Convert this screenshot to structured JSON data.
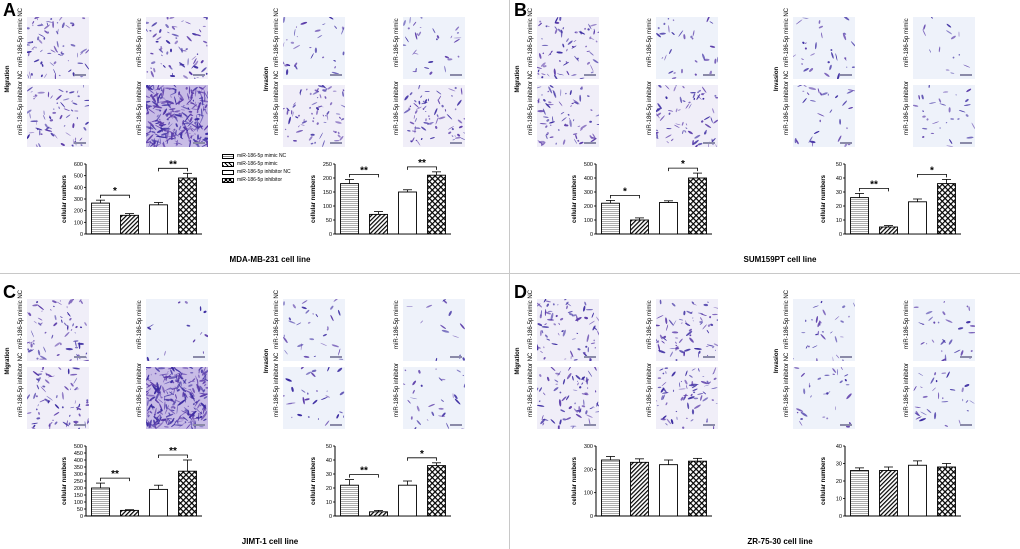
{
  "legend": [
    "miR-186-5p mimic NC",
    "miR-186-5p mimic",
    "miR-186-5p inhibitor NC",
    "miR-186-5p inhibitor"
  ],
  "row_labels": {
    "mimic_nc": "miR-186-5p mimic NC",
    "mimic": "miR-186-5p mimic",
    "inhibitor_nc": "miR-186-5p inhibitor NC",
    "inhibitor": "miR-186-5p inhibitor"
  },
  "ylabel": "cellular numbers",
  "colors": {
    "stain": "#5a3aa8",
    "light_bg": "#e8ecf8",
    "dense": "#3a2aa0"
  },
  "panels": [
    {
      "letter": "A",
      "caption": "MDA-MB-231 cell line",
      "migration_label": "Migration",
      "invasion_label": "Invasion",
      "photos": {
        "migration": [
          "medium",
          "medium",
          "medium",
          "dense"
        ],
        "invasion": [
          "light",
          "light",
          "medium",
          "medium"
        ]
      }
    },
    {
      "letter": "B",
      "caption": "SUM159PT cell line",
      "migration_label": "Migration",
      "invasion_label": "Invasion",
      "photos": {
        "migration": [
          "medium",
          "light",
          "medium",
          "medium"
        ],
        "invasion": [
          "light",
          "sparse",
          "light",
          "light"
        ]
      }
    },
    {
      "letter": "C",
      "caption": "JIMT-1 cell line",
      "migration_label": "Migration",
      "invasion_label": "Invasion",
      "photos": {
        "migration": [
          "medium",
          "sparse",
          "medium",
          "dense"
        ],
        "invasion": [
          "light",
          "sparse",
          "light",
          "light"
        ]
      }
    },
    {
      "letter": "D",
      "caption": "ZR-75-30 cell line",
      "migration_label": "Migration",
      "invasion_label": "Invasion",
      "photos": {
        "migration": [
          "medium",
          "medium",
          "medium",
          "medium"
        ],
        "invasion": [
          "light",
          "light",
          "light",
          "light"
        ]
      }
    }
  ],
  "chart_data": [
    {
      "id": "A-migration",
      "type": "bar",
      "ylabel": "cellular numbers",
      "ylim": [
        0,
        600
      ],
      "ticks": [
        0,
        100,
        200,
        300,
        400,
        500,
        600
      ],
      "categories": [
        "miR-186-5p mimic NC",
        "miR-186-5p mimic",
        "miR-186-5p inhibitor NC",
        "miR-186-5p inhibitor"
      ],
      "values": [
        265,
        160,
        250,
        480
      ],
      "errors": [
        25,
        15,
        20,
        40
      ],
      "significance": [
        {
          "pair": [
            0,
            1
          ],
          "label": "*"
        },
        {
          "pair": [
            2,
            3
          ],
          "label": "**"
        }
      ]
    },
    {
      "id": "A-invasion",
      "type": "bar",
      "ylabel": "cellular numbers",
      "ylim": [
        0,
        250
      ],
      "ticks": [
        0,
        50,
        100,
        150,
        200,
        250
      ],
      "categories": [
        "miR-186-5p mimic NC",
        "miR-186-5p mimic",
        "miR-186-5p inhibitor NC",
        "miR-186-5p inhibitor"
      ],
      "values": [
        180,
        70,
        150,
        210
      ],
      "errors": [
        15,
        10,
        8,
        12
      ],
      "significance": [
        {
          "pair": [
            0,
            1
          ],
          "label": "**"
        },
        {
          "pair": [
            2,
            3
          ],
          "label": "**"
        }
      ]
    },
    {
      "id": "B-migration",
      "type": "bar",
      "ylabel": "cellular numbers",
      "ylim": [
        0,
        500
      ],
      "ticks": [
        0,
        100,
        200,
        300,
        400,
        500
      ],
      "categories": [
        "miR-186-5p mimic NC",
        "miR-186-5p mimic",
        "miR-186-5p inhibitor NC",
        "miR-186-5p inhibitor"
      ],
      "values": [
        220,
        100,
        225,
        400
      ],
      "errors": [
        20,
        15,
        12,
        35
      ],
      "significance": [
        {
          "pair": [
            0,
            1
          ],
          "label": "*"
        },
        {
          "pair": [
            2,
            3
          ],
          "label": "*"
        }
      ]
    },
    {
      "id": "B-invasion",
      "type": "bar",
      "ylabel": "cellular numbers",
      "ylim": [
        0,
        50
      ],
      "ticks": [
        0,
        10,
        20,
        30,
        40,
        50
      ],
      "categories": [
        "miR-186-5p mimic NC",
        "miR-186-5p mimic",
        "miR-186-5p inhibitor NC",
        "miR-186-5p inhibitor"
      ],
      "values": [
        26,
        5,
        23,
        36
      ],
      "errors": [
        3,
        1,
        2,
        3
      ],
      "significance": [
        {
          "pair": [
            0,
            1
          ],
          "label": "**"
        },
        {
          "pair": [
            2,
            3
          ],
          "label": "*"
        }
      ]
    },
    {
      "id": "C-migration",
      "type": "bar",
      "ylabel": "cellular numbers",
      "ylim": [
        0,
        500
      ],
      "ticks": [
        0,
        50,
        100,
        150,
        200,
        250,
        300,
        350,
        400,
        450,
        500
      ],
      "categories": [
        "miR-186-5p mimic NC",
        "miR-186-5p mimic",
        "miR-186-5p inhibitor NC",
        "miR-186-5p inhibitor"
      ],
      "values": [
        200,
        40,
        190,
        320
      ],
      "errors": [
        35,
        5,
        30,
        80
      ],
      "significance": [
        {
          "pair": [
            0,
            1
          ],
          "label": "**"
        },
        {
          "pair": [
            2,
            3
          ],
          "label": "**"
        }
      ]
    },
    {
      "id": "C-invasion",
      "type": "bar",
      "ylabel": "cellular numbers",
      "ylim": [
        0,
        50
      ],
      "ticks": [
        0,
        10,
        20,
        30,
        40,
        50
      ],
      "categories": [
        "miR-186-5p mimic NC",
        "miR-186-5p mimic",
        "miR-186-5p inhibitor NC",
        "miR-186-5p inhibitor"
      ],
      "values": [
        22,
        3,
        22,
        36
      ],
      "errors": [
        4,
        1,
        3,
        2
      ],
      "significance": [
        {
          "pair": [
            0,
            1
          ],
          "label": "**"
        },
        {
          "pair": [
            2,
            3
          ],
          "label": "*"
        }
      ]
    },
    {
      "id": "D-migration",
      "type": "bar",
      "ylabel": "cellular numbers",
      "ylim": [
        0,
        300
      ],
      "ticks": [
        0,
        100,
        200,
        300
      ],
      "categories": [
        "miR-186-5p mimic NC",
        "miR-186-5p mimic",
        "miR-186-5p inhibitor NC",
        "miR-186-5p inhibitor"
      ],
      "values": [
        240,
        230,
        220,
        235
      ],
      "errors": [
        15,
        15,
        20,
        12
      ],
      "significance": []
    },
    {
      "id": "D-invasion",
      "type": "bar",
      "ylabel": "cellular numbers",
      "ylim": [
        0,
        40
      ],
      "ticks": [
        0,
        10,
        20,
        30,
        40
      ],
      "categories": [
        "miR-186-5p mimic NC",
        "miR-186-5p mimic",
        "miR-186-5p inhibitor NC",
        "miR-186-5p inhibitor"
      ],
      "values": [
        26,
        26,
        29,
        28
      ],
      "errors": [
        1.5,
        2,
        2.5,
        2
      ],
      "significance": []
    }
  ]
}
